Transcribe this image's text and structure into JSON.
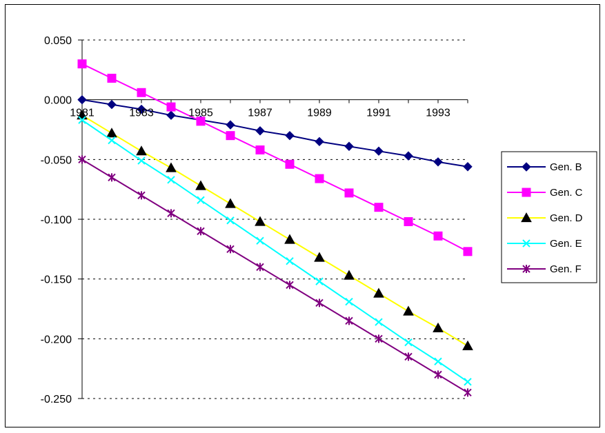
{
  "chart_data": {
    "type": "line",
    "title": "",
    "xlabel": "",
    "ylabel": "",
    "x": [
      1981,
      1982,
      1983,
      1984,
      1985,
      1986,
      1987,
      1988,
      1989,
      1990,
      1991,
      1992,
      1993,
      1994
    ],
    "x_tick_labels": [
      "1981",
      "1983",
      "1985",
      "1987",
      "1989",
      "1991",
      "1993"
    ],
    "y_tick_labels": [
      "0.050",
      "0.000",
      "-0.050",
      "-0.100",
      "-0.150",
      "-0.200",
      "-0.250"
    ],
    "ylim": [
      -0.25,
      0.05
    ],
    "grid": "horizontal dashed",
    "legend": "right",
    "series": [
      {
        "name": "Gen. B",
        "color": "#000080",
        "marker": "diamond",
        "values": [
          0.0,
          -0.004,
          -0.008,
          -0.013,
          -0.017,
          -0.021,
          -0.026,
          -0.03,
          -0.035,
          -0.039,
          -0.043,
          -0.047,
          -0.052,
          -0.056
        ]
      },
      {
        "name": "Gen. C",
        "color": "#ff00ff",
        "marker": "square",
        "values": [
          0.03,
          0.018,
          0.006,
          -0.006,
          -0.018,
          -0.03,
          -0.042,
          -0.054,
          -0.066,
          -0.078,
          -0.09,
          -0.102,
          -0.114,
          -0.127
        ]
      },
      {
        "name": "Gen. D",
        "color": "#ffff00",
        "marker": "triangle",
        "values": [
          -0.013,
          -0.028,
          -0.043,
          -0.057,
          -0.072,
          -0.087,
          -0.102,
          -0.117,
          -0.132,
          -0.147,
          -0.162,
          -0.177,
          -0.191,
          -0.206
        ]
      },
      {
        "name": "Gen. E",
        "color": "#00ffff",
        "marker": "x",
        "values": [
          -0.017,
          -0.034,
          -0.051,
          -0.067,
          -0.084,
          -0.101,
          -0.118,
          -0.135,
          -0.152,
          -0.169,
          -0.186,
          -0.203,
          -0.219,
          -0.236
        ]
      },
      {
        "name": "Gen. F",
        "color": "#800080",
        "marker": "star",
        "values": [
          -0.05,
          -0.065,
          -0.08,
          -0.095,
          -0.11,
          -0.125,
          -0.14,
          -0.155,
          -0.17,
          -0.185,
          -0.2,
          -0.215,
          -0.23,
          -0.245
        ]
      }
    ]
  }
}
